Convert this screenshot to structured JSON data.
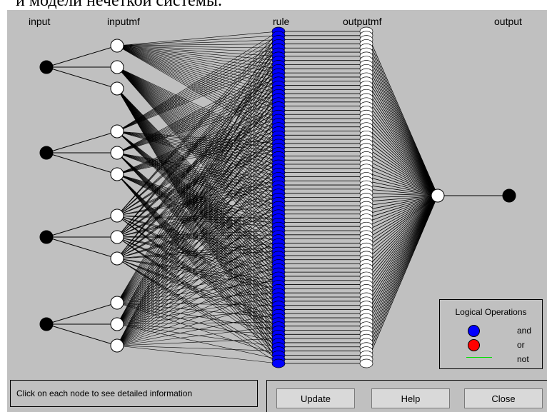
{
  "document": {
    "caption": "и модели нечеткой системы."
  },
  "diagram": {
    "columns": {
      "input": "input",
      "inputmf": "inputmf",
      "rule": "rule",
      "outputmf": "outputmf",
      "output": "output"
    },
    "input_count": 4,
    "mfs_per_input": 3,
    "rule_count": 81,
    "outputmf_count": 81,
    "colors": {
      "rule_node": "#0000ff",
      "mf_node": "#ffffff",
      "io_node": "#000000",
      "background": "#c0c0c0"
    }
  },
  "legend": {
    "title": "Logical Operations",
    "items": [
      {
        "label": "and",
        "color": "#0000ff"
      },
      {
        "label": "or",
        "color": "#ff0000"
      },
      {
        "label": "not",
        "color": "#00e000"
      }
    ]
  },
  "status": {
    "text": "Click on each node to see detailed information"
  },
  "buttons": {
    "update": "Update",
    "help": "Help",
    "close": "Close"
  }
}
